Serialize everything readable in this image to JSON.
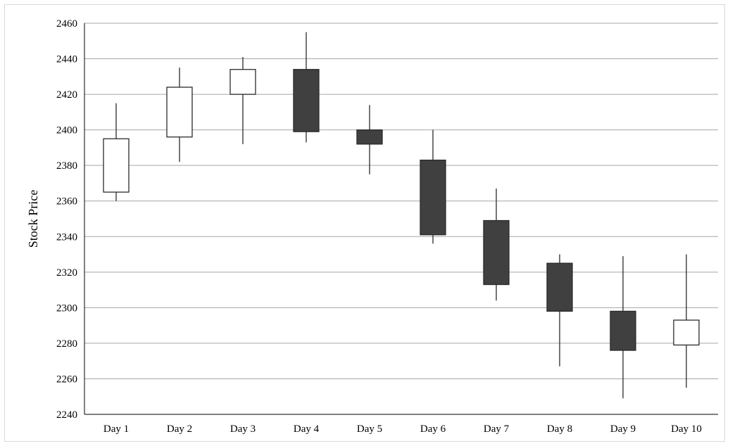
{
  "chart_data": {
    "type": "candlestick",
    "title": "",
    "xlabel": "",
    "ylabel": "Stock Price",
    "ylim": [
      2240,
      2460
    ],
    "yticks": [
      2240,
      2260,
      2280,
      2300,
      2320,
      2340,
      2360,
      2380,
      2400,
      2420,
      2440,
      2460
    ],
    "grid": true,
    "legend": "none",
    "colors": {
      "up_fill": "#ffffff",
      "down_fill": "#404040",
      "outline": "#2b2b2b",
      "grid": "#a6a6a6"
    },
    "categories": [
      "Day 1",
      "Day 2",
      "Day 3",
      "Day 4",
      "Day 5",
      "Day 6",
      "Day 7",
      "Day 8",
      "Day 9",
      "Day 10"
    ],
    "ohlc": [
      {
        "open": 2365,
        "high": 2415,
        "low": 2360,
        "close": 2395
      },
      {
        "open": 2396,
        "high": 2435,
        "low": 2382,
        "close": 2424
      },
      {
        "open": 2420,
        "high": 2441,
        "low": 2392,
        "close": 2434
      },
      {
        "open": 2434,
        "high": 2455,
        "low": 2393,
        "close": 2399
      },
      {
        "open": 2400,
        "high": 2414,
        "low": 2375,
        "close": 2392
      },
      {
        "open": 2383,
        "high": 2400,
        "low": 2336,
        "close": 2341
      },
      {
        "open": 2349,
        "high": 2367,
        "low": 2304,
        "close": 2313
      },
      {
        "open": 2325,
        "high": 2330,
        "low": 2267,
        "close": 2298
      },
      {
        "open": 2298,
        "high": 2329,
        "low": 2249,
        "close": 2276
      },
      {
        "open": 2279,
        "high": 2330,
        "low": 2255,
        "close": 2293
      }
    ]
  }
}
